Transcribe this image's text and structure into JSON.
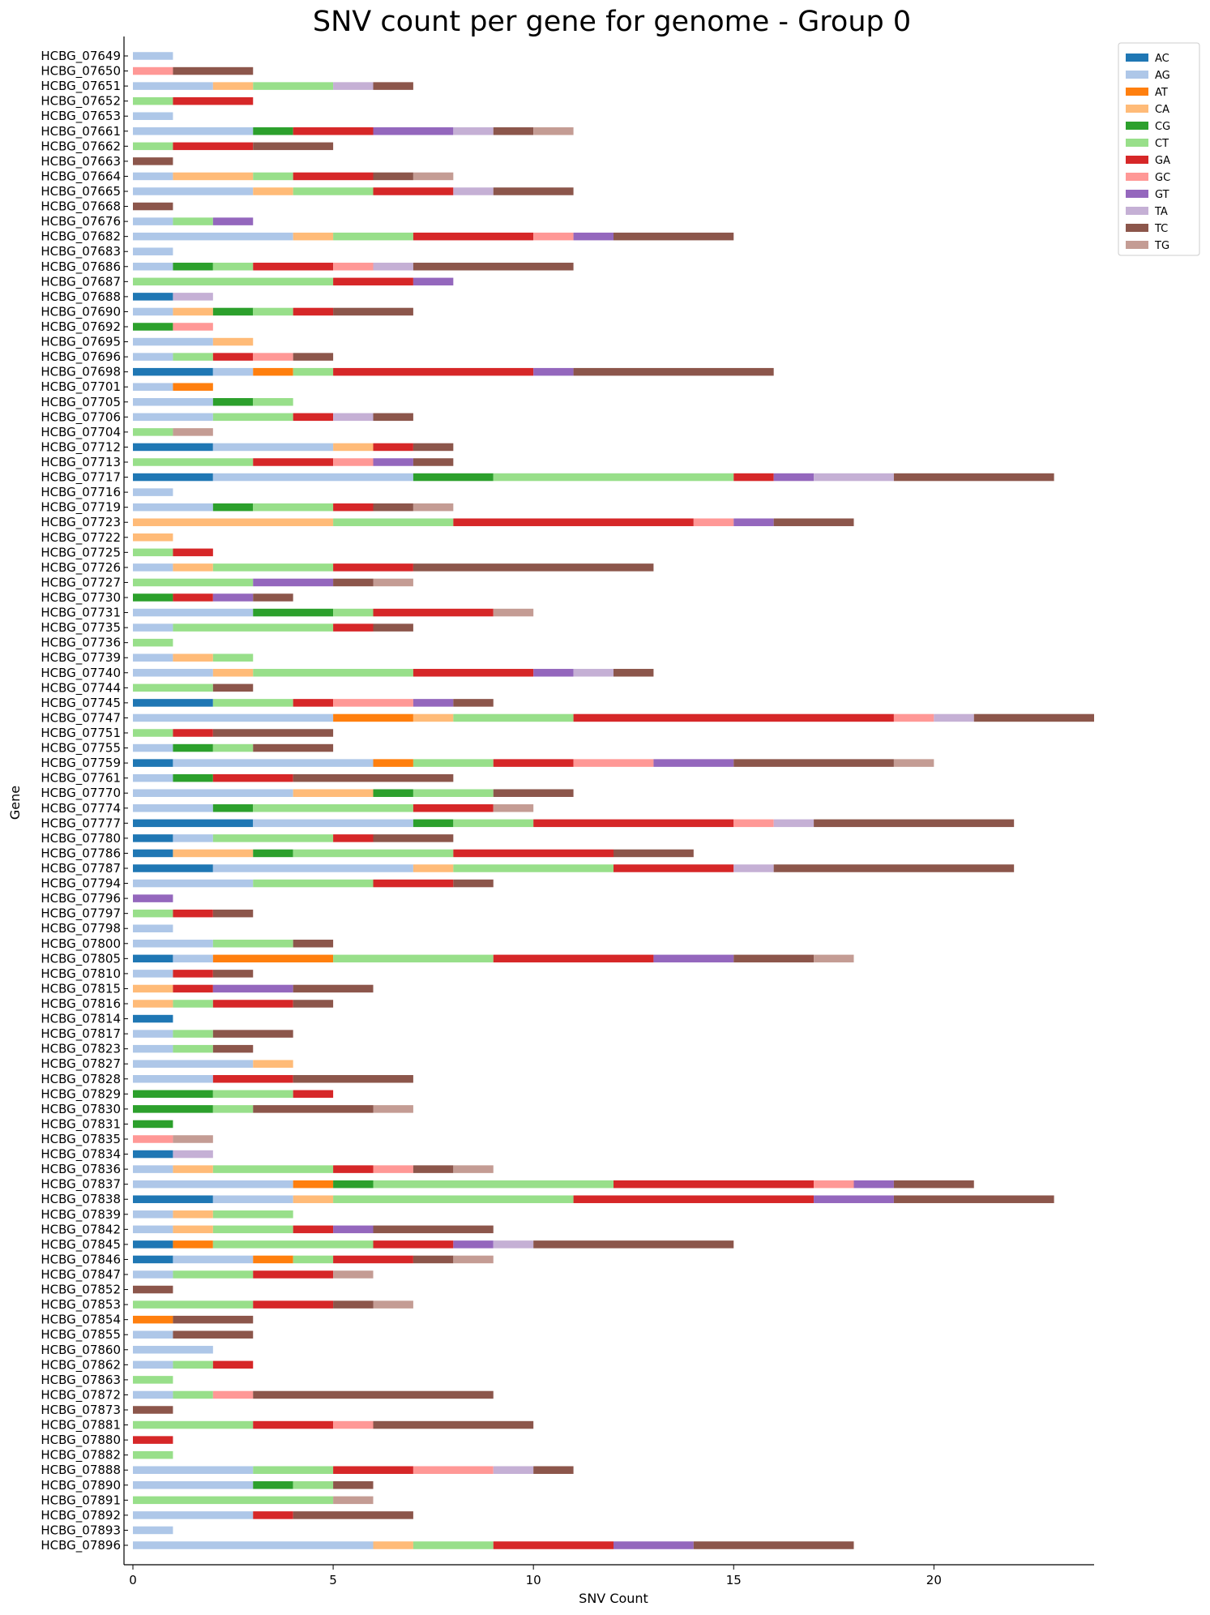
{
  "chart_data": {
    "type": "bar",
    "orientation": "horizontal",
    "stacked": true,
    "title": "SNV count per gene for genome - Group 0",
    "xlabel": "SNV Count",
    "ylabel": "Gene",
    "xlim": [
      0,
      24
    ],
    "xticks": [
      0,
      5,
      10,
      15,
      20
    ],
    "legend_position": "top-right outside",
    "series_names": [
      "AC",
      "AG",
      "AT",
      "CA",
      "CG",
      "CT",
      "GA",
      "GC",
      "GT",
      "TA",
      "TC",
      "TG"
    ],
    "colors": {
      "AC": "#1f77b4",
      "AG": "#aec7e8",
      "AT": "#ff7f0e",
      "CA": "#ffbb78",
      "CG": "#2ca02c",
      "CT": "#98df8a",
      "GA": "#d62728",
      "GC": "#ff9896",
      "GT": "#9467bd",
      "TA": "#c5b0d5",
      "TC": "#8c564b",
      "TG": "#c49c94"
    },
    "genes": [
      {
        "name": "HCBG_07649",
        "counts": {
          "AG": 1
        }
      },
      {
        "name": "HCBG_07650",
        "counts": {
          "GC": 1,
          "TC": 2
        }
      },
      {
        "name": "HCBG_07651",
        "counts": {
          "AG": 2,
          "CA": 1,
          "CT": 2,
          "TA": 1,
          "TC": 1
        }
      },
      {
        "name": "HCBG_07652",
        "counts": {
          "CT": 1,
          "GA": 2
        }
      },
      {
        "name": "HCBG_07653",
        "counts": {
          "AG": 1
        }
      },
      {
        "name": "HCBG_07661",
        "counts": {
          "AG": 3,
          "CG": 1,
          "GA": 2,
          "GT": 2,
          "TA": 1,
          "TC": 1,
          "TG": 1
        }
      },
      {
        "name": "HCBG_07662",
        "counts": {
          "CT": 1,
          "GA": 2,
          "TC": 2
        }
      },
      {
        "name": "HCBG_07663",
        "counts": {
          "TC": 1
        }
      },
      {
        "name": "HCBG_07664",
        "counts": {
          "AG": 1,
          "CA": 2,
          "CT": 1,
          "GA": 2,
          "TC": 1,
          "TG": 1
        }
      },
      {
        "name": "HCBG_07665",
        "counts": {
          "AG": 3,
          "CA": 1,
          "CT": 2,
          "GA": 2,
          "TA": 1,
          "TC": 2
        }
      },
      {
        "name": "HCBG_07668",
        "counts": {
          "TC": 1
        }
      },
      {
        "name": "HCBG_07676",
        "counts": {
          "AG": 1,
          "CT": 1,
          "GT": 1
        }
      },
      {
        "name": "HCBG_07682",
        "counts": {
          "AG": 4,
          "CA": 1,
          "CT": 2,
          "GA": 3,
          "GC": 1,
          "GT": 1,
          "TC": 3
        }
      },
      {
        "name": "HCBG_07683",
        "counts": {
          "AG": 1
        }
      },
      {
        "name": "HCBG_07686",
        "counts": {
          "AG": 1,
          "CG": 1,
          "CT": 1,
          "GA": 2,
          "GC": 1,
          "TA": 1,
          "TC": 4
        }
      },
      {
        "name": "HCBG_07687",
        "counts": {
          "CT": 5,
          "GA": 2,
          "GT": 1
        }
      },
      {
        "name": "HCBG_07688",
        "counts": {
          "AC": 1,
          "TA": 1
        }
      },
      {
        "name": "HCBG_07690",
        "counts": {
          "AG": 1,
          "CA": 1,
          "CG": 1,
          "CT": 1,
          "GA": 1,
          "TC": 2
        }
      },
      {
        "name": "HCBG_07692",
        "counts": {
          "CG": 1,
          "GC": 1
        }
      },
      {
        "name": "HCBG_07695",
        "counts": {
          "AG": 2,
          "CA": 1
        }
      },
      {
        "name": "HCBG_07696",
        "counts": {
          "AG": 1,
          "CT": 1,
          "GA": 1,
          "GC": 1,
          "TC": 1
        }
      },
      {
        "name": "HCBG_07698",
        "counts": {
          "AC": 2,
          "AG": 1,
          "AT": 1,
          "CT": 1,
          "GA": 5,
          "GT": 1,
          "TC": 5
        }
      },
      {
        "name": "HCBG_07701",
        "counts": {
          "AG": 1,
          "AT": 1
        }
      },
      {
        "name": "HCBG_07705",
        "counts": {
          "AG": 2,
          "CG": 1,
          "CT": 1
        }
      },
      {
        "name": "HCBG_07706",
        "counts": {
          "AG": 2,
          "CT": 2,
          "GA": 1,
          "TA": 1,
          "TC": 1
        }
      },
      {
        "name": "HCBG_07704",
        "counts": {
          "CT": 1,
          "TG": 1
        }
      },
      {
        "name": "HCBG_07712",
        "counts": {
          "AC": 2,
          "AG": 3,
          "CA": 1,
          "GA": 1,
          "TC": 1
        }
      },
      {
        "name": "HCBG_07713",
        "counts": {
          "CT": 3,
          "GA": 2,
          "GC": 1,
          "GT": 1,
          "TC": 1
        }
      },
      {
        "name": "HCBG_07717",
        "counts": {
          "AC": 2,
          "AG": 5,
          "CG": 2,
          "CT": 6,
          "GA": 1,
          "GT": 1,
          "TA": 2,
          "TC": 4
        }
      },
      {
        "name": "HCBG_07716",
        "counts": {
          "AG": 1
        }
      },
      {
        "name": "HCBG_07719",
        "counts": {
          "AG": 2,
          "CG": 1,
          "CT": 2,
          "GA": 1,
          "TC": 1,
          "TG": 1
        }
      },
      {
        "name": "HCBG_07723",
        "counts": {
          "CA": 5,
          "CT": 3,
          "GA": 6,
          "GC": 1,
          "GT": 1,
          "TC": 2
        }
      },
      {
        "name": "HCBG_07722",
        "counts": {
          "CA": 1
        }
      },
      {
        "name": "HCBG_07725",
        "counts": {
          "CT": 1,
          "GA": 1
        }
      },
      {
        "name": "HCBG_07726",
        "counts": {
          "AG": 1,
          "CA": 1,
          "CT": 3,
          "GA": 2,
          "TC": 6
        }
      },
      {
        "name": "HCBG_07727",
        "counts": {
          "CT": 3,
          "GT": 2,
          "TC": 1,
          "TG": 1
        }
      },
      {
        "name": "HCBG_07730",
        "counts": {
          "CG": 1,
          "GA": 1,
          "GT": 1,
          "TC": 1
        }
      },
      {
        "name": "HCBG_07731",
        "counts": {
          "AG": 3,
          "CG": 2,
          "CT": 1,
          "GA": 3,
          "TG": 1
        }
      },
      {
        "name": "HCBG_07735",
        "counts": {
          "AG": 1,
          "CT": 4,
          "GA": 1,
          "TC": 1
        }
      },
      {
        "name": "HCBG_07736",
        "counts": {
          "CT": 1
        }
      },
      {
        "name": "HCBG_07739",
        "counts": {
          "AG": 1,
          "CA": 1,
          "CT": 1
        }
      },
      {
        "name": "HCBG_07740",
        "counts": {
          "AG": 2,
          "CA": 1,
          "CT": 4,
          "GA": 3,
          "GT": 1,
          "TA": 1,
          "TC": 1
        }
      },
      {
        "name": "HCBG_07744",
        "counts": {
          "CT": 2,
          "TC": 1
        }
      },
      {
        "name": "HCBG_07745",
        "counts": {
          "AC": 2,
          "CT": 2,
          "GA": 1,
          "GC": 2,
          "GT": 1,
          "TC": 1
        }
      },
      {
        "name": "HCBG_07747",
        "counts": {
          "AG": 5,
          "AT": 2,
          "CA": 1,
          "CT": 3,
          "GA": 8,
          "GC": 1,
          "TA": 1,
          "TC": 3
        }
      },
      {
        "name": "HCBG_07751",
        "counts": {
          "CT": 1,
          "GA": 1,
          "TC": 3
        }
      },
      {
        "name": "HCBG_07755",
        "counts": {
          "AG": 1,
          "CG": 1,
          "CT": 1,
          "TC": 2
        }
      },
      {
        "name": "HCBG_07759",
        "counts": {
          "AC": 1,
          "AG": 5,
          "AT": 1,
          "CT": 2,
          "GA": 2,
          "GC": 2,
          "GT": 2,
          "TC": 4,
          "TG": 1
        }
      },
      {
        "name": "HCBG_07761",
        "counts": {
          "AG": 1,
          "CG": 1,
          "GA": 2,
          "TC": 4
        }
      },
      {
        "name": "HCBG_07770",
        "counts": {
          "AG": 4,
          "CA": 2,
          "CG": 1,
          "CT": 2,
          "TC": 2
        }
      },
      {
        "name": "HCBG_07774",
        "counts": {
          "AG": 2,
          "CG": 1,
          "CT": 4,
          "GA": 2,
          "TG": 1
        }
      },
      {
        "name": "HCBG_07777",
        "counts": {
          "AC": 3,
          "AG": 4,
          "CG": 1,
          "CT": 2,
          "GA": 5,
          "GC": 1,
          "TA": 1,
          "TC": 5
        }
      },
      {
        "name": "HCBG_07780",
        "counts": {
          "AC": 1,
          "AG": 1,
          "CT": 3,
          "GA": 1,
          "TC": 2
        }
      },
      {
        "name": "HCBG_07786",
        "counts": {
          "AC": 1,
          "CA": 2,
          "CG": 1,
          "CT": 4,
          "GA": 4,
          "TC": 2
        }
      },
      {
        "name": "HCBG_07787",
        "counts": {
          "AC": 2,
          "AG": 5,
          "CA": 1,
          "CT": 4,
          "GA": 3,
          "TA": 1,
          "TC": 6
        }
      },
      {
        "name": "HCBG_07794",
        "counts": {
          "AG": 3,
          "CT": 3,
          "GA": 2,
          "TC": 1
        }
      },
      {
        "name": "HCBG_07796",
        "counts": {
          "GT": 1
        }
      },
      {
        "name": "HCBG_07797",
        "counts": {
          "CT": 1,
          "GA": 1,
          "TC": 1
        }
      },
      {
        "name": "HCBG_07798",
        "counts": {
          "AG": 1
        }
      },
      {
        "name": "HCBG_07800",
        "counts": {
          "AG": 2,
          "CT": 2,
          "TC": 1
        }
      },
      {
        "name": "HCBG_07805",
        "counts": {
          "AC": 1,
          "AG": 1,
          "AT": 3,
          "CT": 4,
          "GA": 4,
          "GT": 2,
          "TC": 2,
          "TG": 1
        }
      },
      {
        "name": "HCBG_07810",
        "counts": {
          "AG": 1,
          "GA": 1,
          "TC": 1
        }
      },
      {
        "name": "HCBG_07815",
        "counts": {
          "CA": 1,
          "GA": 1,
          "GT": 2,
          "TC": 2
        }
      },
      {
        "name": "HCBG_07816",
        "counts": {
          "CA": 1,
          "CT": 1,
          "GA": 2,
          "TC": 1
        }
      },
      {
        "name": "HCBG_07814",
        "counts": {
          "AC": 1
        }
      },
      {
        "name": "HCBG_07817",
        "counts": {
          "AG": 1,
          "CT": 1,
          "TC": 2
        }
      },
      {
        "name": "HCBG_07823",
        "counts": {
          "AG": 1,
          "CT": 1,
          "TC": 1
        }
      },
      {
        "name": "HCBG_07827",
        "counts": {
          "AG": 3,
          "CA": 1
        }
      },
      {
        "name": "HCBG_07828",
        "counts": {
          "AG": 2,
          "GA": 2,
          "TC": 3
        }
      },
      {
        "name": "HCBG_07829",
        "counts": {
          "CG": 2,
          "CT": 2,
          "GA": 1
        }
      },
      {
        "name": "HCBG_07830",
        "counts": {
          "CG": 2,
          "CT": 1,
          "TC": 3,
          "TG": 1
        }
      },
      {
        "name": "HCBG_07831",
        "counts": {
          "CG": 1
        }
      },
      {
        "name": "HCBG_07835",
        "counts": {
          "GC": 1,
          "TG": 1
        }
      },
      {
        "name": "HCBG_07834",
        "counts": {
          "AC": 1,
          "TA": 1
        }
      },
      {
        "name": "HCBG_07836",
        "counts": {
          "AG": 1,
          "CA": 1,
          "CT": 3,
          "GA": 1,
          "GC": 1,
          "TC": 1,
          "TG": 1
        }
      },
      {
        "name": "HCBG_07837",
        "counts": {
          "AG": 4,
          "AT": 1,
          "CG": 1,
          "CT": 6,
          "GA": 5,
          "GC": 1,
          "GT": 1,
          "TC": 2
        }
      },
      {
        "name": "HCBG_07838",
        "counts": {
          "AC": 2,
          "AG": 2,
          "CA": 1,
          "CT": 6,
          "GA": 6,
          "GT": 2,
          "TC": 4
        }
      },
      {
        "name": "HCBG_07839",
        "counts": {
          "AG": 1,
          "CA": 1,
          "CT": 2
        }
      },
      {
        "name": "HCBG_07842",
        "counts": {
          "AG": 1,
          "CA": 1,
          "CT": 2,
          "GA": 1,
          "GT": 1,
          "TC": 3
        }
      },
      {
        "name": "HCBG_07845",
        "counts": {
          "AC": 1,
          "AT": 1,
          "CT": 4,
          "GA": 2,
          "GT": 1,
          "TA": 1,
          "TC": 5
        }
      },
      {
        "name": "HCBG_07846",
        "counts": {
          "AC": 1,
          "AG": 2,
          "AT": 1,
          "CT": 1,
          "GA": 2,
          "TC": 1,
          "TG": 1
        }
      },
      {
        "name": "HCBG_07847",
        "counts": {
          "AG": 1,
          "CT": 2,
          "GA": 2,
          "TG": 1
        }
      },
      {
        "name": "HCBG_07852",
        "counts": {
          "TC": 1
        }
      },
      {
        "name": "HCBG_07853",
        "counts": {
          "CT": 3,
          "GA": 2,
          "TC": 1,
          "TG": 1
        }
      },
      {
        "name": "HCBG_07854",
        "counts": {
          "AT": 1,
          "TC": 2
        }
      },
      {
        "name": "HCBG_07855",
        "counts": {
          "AG": 1,
          "TC": 2
        }
      },
      {
        "name": "HCBG_07860",
        "counts": {
          "AG": 2
        }
      },
      {
        "name": "HCBG_07862",
        "counts": {
          "AG": 1,
          "CT": 1,
          "GA": 1
        }
      },
      {
        "name": "HCBG_07863",
        "counts": {
          "CT": 1
        }
      },
      {
        "name": "HCBG_07872",
        "counts": {
          "AG": 1,
          "CT": 1,
          "GC": 1,
          "TC": 6
        }
      },
      {
        "name": "HCBG_07873",
        "counts": {
          "TC": 1
        }
      },
      {
        "name": "HCBG_07881",
        "counts": {
          "CT": 3,
          "GA": 2,
          "GC": 1,
          "TC": 4
        }
      },
      {
        "name": "HCBG_07880",
        "counts": {
          "GA": 1
        }
      },
      {
        "name": "HCBG_07882",
        "counts": {
          "CT": 1
        }
      },
      {
        "name": "HCBG_07888",
        "counts": {
          "AG": 3,
          "CT": 2,
          "GA": 2,
          "GC": 2,
          "TA": 1,
          "TC": 1
        }
      },
      {
        "name": "HCBG_07890",
        "counts": {
          "AG": 3,
          "CG": 1,
          "CT": 1,
          "TC": 1
        }
      },
      {
        "name": "HCBG_07891",
        "counts": {
          "CT": 5,
          "TG": 1
        }
      },
      {
        "name": "HCBG_07892",
        "counts": {
          "AG": 3,
          "GA": 1,
          "TC": 3
        }
      },
      {
        "name": "HCBG_07893",
        "counts": {
          "AG": 1
        }
      },
      {
        "name": "HCBG_07896",
        "counts": {
          "AG": 6,
          "CA": 1,
          "CT": 2,
          "GA": 3,
          "GT": 2,
          "TC": 4
        }
      }
    ]
  }
}
